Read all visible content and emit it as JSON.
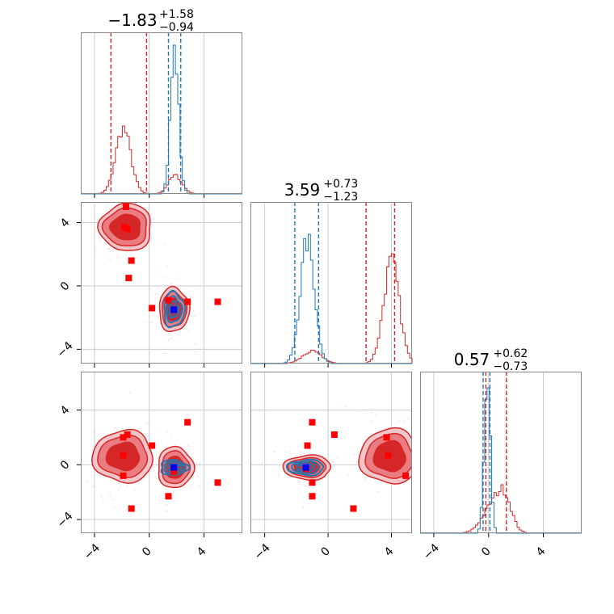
{
  "chart_data": {
    "type": "corner",
    "parameters": 3,
    "colors": {
      "series_a": "#d62728",
      "series_b": "#1f77b4",
      "truth": "#ff0000",
      "highlight": "#0000ff"
    },
    "grid": true,
    "titles": [
      {
        "median": "−1.83",
        "plus": "+1.58",
        "minus": "−0.94"
      },
      {
        "median": "3.59",
        "plus": "+0.73",
        "minus": "−1.23"
      },
      {
        "median": "0.57",
        "plus": "+0.62",
        "minus": "−0.73"
      }
    ],
    "ranges": [
      [
        -5.0,
        6.8
      ],
      [
        -4.9,
        5.3
      ],
      [
        -5.0,
        6.8
      ]
    ],
    "x_ticks": [
      -4,
      0,
      4
    ],
    "y_ticks": [
      -4,
      0,
      4
    ],
    "x_tick_labels": [
      "−4",
      "0",
      "4"
    ],
    "y_tick_labels": [
      "−4",
      "0",
      "4"
    ],
    "marginals": [
      {
        "red": {
          "mu": [
            -1.9,
            1.9
          ],
          "sigma": [
            0.55,
            0.5
          ],
          "weight": [
            1.0,
            0.28
          ]
        },
        "blue": {
          "mu": [
            1.85
          ],
          "sigma": [
            0.3
          ],
          "weight": [
            1.0
          ]
        },
        "peak_fraction": {
          "red": 0.42,
          "blue": 0.92
        },
        "red_quantiles": [
          -2.8,
          -0.2
        ],
        "blue_quantiles": [
          1.4,
          2.3
        ]
      },
      {
        "red": {
          "mu": [
            -1.0,
            4.0
          ],
          "sigma": [
            0.6,
            0.5
          ],
          "weight": [
            0.12,
            1.0
          ]
        },
        "blue": {
          "mu": [
            -1.3
          ],
          "sigma": [
            0.45
          ],
          "weight": [
            1.0
          ]
        },
        "peak_fraction": {
          "red": 0.68,
          "blue": 0.8
        },
        "red_quantiles": [
          2.4,
          4.2
        ],
        "blue_quantiles": [
          -2.1,
          -0.6
        ]
      },
      {
        "red": {
          "mu": [
            0.4,
            1.2
          ],
          "sigma": [
            0.8,
            0.5
          ],
          "weight": [
            0.6,
            0.5
          ]
        },
        "blue": {
          "mu": [
            -0.1
          ],
          "sigma": [
            0.22
          ],
          "weight": [
            1.0
          ]
        },
        "peak_fraction": {
          "red": 0.3,
          "blue": 0.9
        },
        "red_quantiles": [
          -0.2,
          1.3
        ],
        "blue_quantiles": [
          -0.4,
          0.1
        ]
      }
    ],
    "panels_2d": [
      {
        "row": 1,
        "col": 0,
        "red_blobs": [
          {
            "cx": -1.7,
            "cy": 3.7,
            "rx": [
              1.1,
              1.6,
              1.9
            ],
            "ry": [
              0.8,
              1.2,
              1.5
            ]
          },
          {
            "cx": 1.8,
            "cy": -1.5,
            "rx": [
              0.6,
              0.9,
              1.1
            ],
            "ry": [
              0.7,
              1.1,
              1.4
            ]
          }
        ],
        "blue_blobs": [
          {
            "cx": 1.8,
            "cy": -1.5,
            "rx": [
              0.35,
              0.55,
              0.75
            ],
            "ry": [
              0.5,
              0.8,
              1.1
            ]
          }
        ],
        "red_points": [
          [
            -1.7,
            5.0
          ],
          [
            -1.8,
            3.7
          ],
          [
            -1.6,
            3.6
          ],
          [
            -1.3,
            1.6
          ],
          [
            -1.5,
            0.5
          ],
          [
            0.2,
            -1.4
          ],
          [
            1.4,
            -0.9
          ],
          [
            2.8,
            -1.0
          ],
          [
            5.0,
            -1.0
          ]
        ],
        "blue_point": [
          1.8,
          -1.5
        ]
      },
      {
        "row": 2,
        "col": 0,
        "red_blobs": [
          {
            "cx": -1.9,
            "cy": 0.6,
            "rx": [
              1.2,
              1.8,
              2.2
            ],
            "ry": [
              1.0,
              1.5,
              1.9
            ]
          },
          {
            "cx": 1.9,
            "cy": -0.2,
            "rx": [
              0.7,
              1.0,
              1.3
            ],
            "ry": [
              0.8,
              1.2,
              1.5
            ]
          }
        ],
        "blue_blobs": [
          {
            "cx": 1.8,
            "cy": -0.2,
            "rx": [
              0.5,
              0.75,
              1.0
            ],
            "ry": [
              0.25,
              0.4,
              0.55
            ]
          }
        ],
        "red_points": [
          [
            -1.6,
            2.2
          ],
          [
            -1.9,
            2.0
          ],
          [
            0.2,
            1.4
          ],
          [
            2.8,
            3.1
          ],
          [
            -1.9,
            0.7
          ],
          [
            -1.9,
            -0.8
          ],
          [
            1.8,
            -0.5
          ],
          [
            5.0,
            -1.3
          ],
          [
            1.4,
            -2.3
          ],
          [
            -1.3,
            -3.2
          ]
        ],
        "blue_point": [
          1.8,
          -0.2
        ]
      },
      {
        "row": 2,
        "col": 1,
        "red_blobs": [
          {
            "cx": 3.9,
            "cy": 0.6,
            "rx": [
              1.0,
              1.5,
              1.9
            ],
            "ry": [
              1.1,
              1.6,
              2.0
            ]
          },
          {
            "cx": -1.3,
            "cy": -0.2,
            "rx": [
              0.8,
              1.2,
              1.5
            ],
            "ry": [
              0.45,
              0.7,
              0.9
            ]
          }
        ],
        "blue_blobs": [
          {
            "cx": -1.4,
            "cy": -0.2,
            "rx": [
              0.55,
              0.85,
              1.15
            ],
            "ry": [
              0.25,
              0.4,
              0.55
            ]
          }
        ],
        "red_points": [
          [
            -1.0,
            3.1
          ],
          [
            0.4,
            2.2
          ],
          [
            3.7,
            2.0
          ],
          [
            -1.3,
            1.4
          ],
          [
            3.8,
            0.7
          ],
          [
            -1.4,
            -0.3
          ],
          [
            4.9,
            -0.8
          ],
          [
            -1.0,
            -1.3
          ],
          [
            -1.0,
            -2.3
          ],
          [
            1.6,
            -3.2
          ]
        ],
        "blue_point": [
          -1.4,
          -0.2
        ]
      }
    ]
  }
}
